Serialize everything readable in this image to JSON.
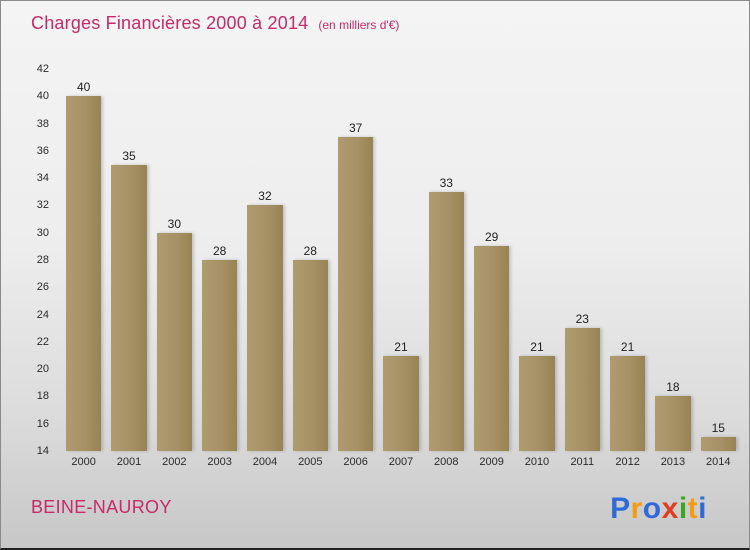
{
  "title": {
    "main": "Charges Financières 2000 à 2014",
    "subtitle": "(en milliers d'€)"
  },
  "footer": {
    "location": "BEINE-NAUROY",
    "logo_letters": [
      {
        "char": "P",
        "color": "#2e6bd9"
      },
      {
        "char": "r",
        "color": "#f39c12"
      },
      {
        "char": "o",
        "color": "#2e6bd9"
      },
      {
        "char": "x",
        "color": "#e03c1e"
      },
      {
        "char": "i",
        "color": "#3da523"
      },
      {
        "char": "t",
        "color": "#f39c12"
      },
      {
        "char": "i",
        "color": "#2e6bd9"
      }
    ]
  },
  "colors": {
    "accent": "#c62a68",
    "bar": "#a59164",
    "value_label": "#222222"
  },
  "chart_data": {
    "type": "bar",
    "title": "Charges Financières 2000 à 2014",
    "subtitle": "(en milliers d'€)",
    "categories": [
      "2000",
      "2001",
      "2002",
      "2003",
      "2004",
      "2005",
      "2006",
      "2007",
      "2008",
      "2009",
      "2010",
      "2011",
      "2012",
      "2013",
      "2014"
    ],
    "values": [
      40,
      35,
      30,
      28,
      32,
      28,
      37,
      21,
      33,
      29,
      21,
      23,
      21,
      18,
      15
    ],
    "xlabel": "",
    "ylabel": "",
    "ylim": [
      14,
      42
    ],
    "yticks": [
      14,
      16,
      18,
      20,
      22,
      24,
      26,
      28,
      30,
      32,
      34,
      36,
      38,
      40,
      42
    ],
    "grid": false,
    "legend": false,
    "bar_color": "#a59164"
  }
}
